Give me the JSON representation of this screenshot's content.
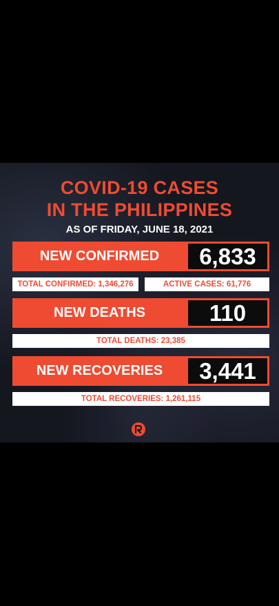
{
  "header": {
    "title_line1": "COVID-19 CASES",
    "title_line2": "IN THE PHILIPPINES",
    "date": "AS OF FRIDAY, JUNE 18, 2021"
  },
  "confirmed": {
    "label": "NEW CONFIRMED",
    "value": "6,833",
    "total": "TOTAL CONFIRMED: 1,346,276",
    "active": "ACTIVE CASES: 61,776"
  },
  "deaths": {
    "label": "NEW DEATHS",
    "value": "110",
    "total": "TOTAL DEATHS: 23,385"
  },
  "recoveries": {
    "label": "NEW RECOVERIES",
    "value": "3,441",
    "total": "TOTAL RECOVERIES: 1,261,115"
  },
  "colors": {
    "accent": "#ef4b32",
    "background": "#000000",
    "card_background": "#15171f",
    "number_box": "#0c0c0c",
    "text_light": "#ffffff"
  },
  "icons": {
    "brand": "rappler-logo-icon"
  }
}
